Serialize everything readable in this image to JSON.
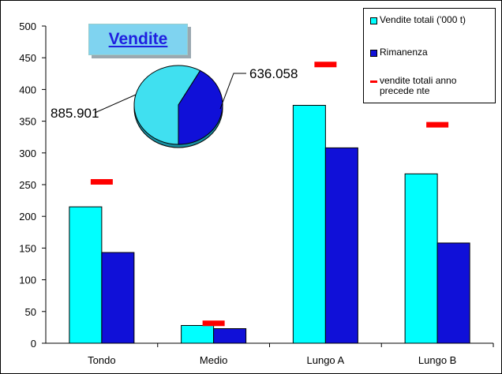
{
  "chart_data": {
    "type": "bar",
    "title": "Vendite",
    "categories": [
      "Tondo",
      "Medio",
      "Lungo A",
      "Lungo B"
    ],
    "series": [
      {
        "name": "Vendite totali ('000  t)",
        "kind": "bar",
        "color": "#00ffff",
        "values": [
          215,
          28,
          375,
          267
        ]
      },
      {
        "name": "Rimanenza",
        "kind": "bar",
        "color": "#1010d8",
        "values": [
          143,
          23,
          308,
          158
        ]
      },
      {
        "name": "vendite totali anno precede nte",
        "kind": "marker",
        "color": "#ff0000",
        "values": [
          255,
          32,
          440,
          345
        ]
      }
    ],
    "ylim": [
      0,
      500
    ],
    "yticks": [
      0,
      50,
      100,
      150,
      200,
      250,
      300,
      350,
      400,
      450,
      500
    ],
    "grid": false,
    "legend_position": "top-right",
    "inset_pie": {
      "slices": [
        {
          "label": "885.901",
          "value": 885.901,
          "color": "#40e0f0"
        },
        {
          "label": "636.058",
          "value": 636.058,
          "color": "#1010d8"
        }
      ]
    }
  }
}
